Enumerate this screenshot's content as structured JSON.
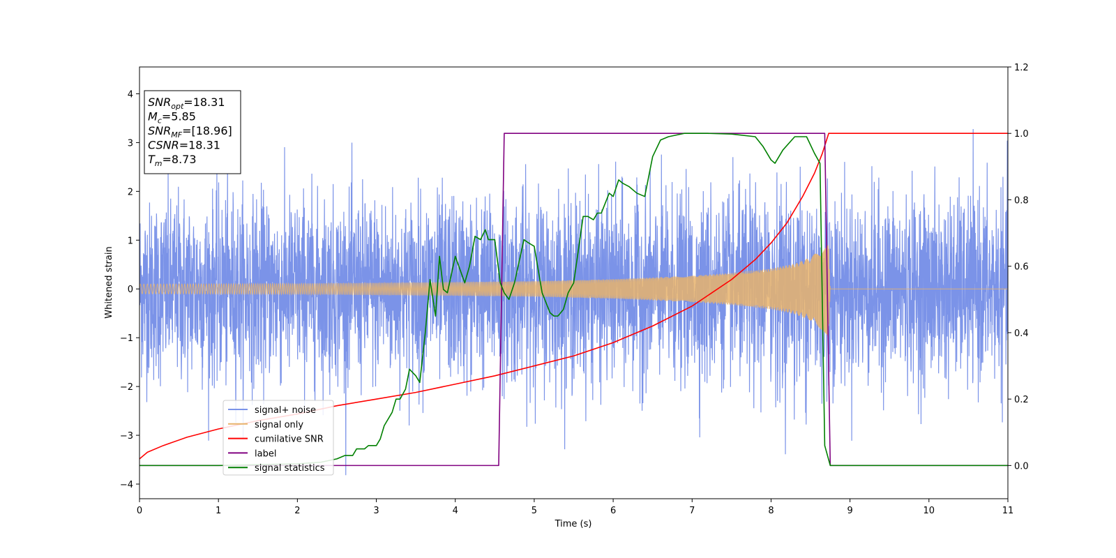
{
  "chart_data": {
    "type": "line",
    "xlabel": "Time (s)",
    "ylabel": "Whitened strain",
    "xlim": [
      0,
      11
    ],
    "ylim": [
      -4.3,
      4.55
    ],
    "ylim_right": [
      -0.1,
      1.2
    ],
    "x_ticks": [
      0,
      1,
      2,
      3,
      4,
      5,
      6,
      7,
      8,
      9,
      10,
      11
    ],
    "y_ticks": [
      -4,
      -3,
      -2,
      -1,
      0,
      1,
      2,
      3,
      4
    ],
    "y_ticks_right": [
      0.0,
      0.2,
      0.4,
      0.6,
      0.8,
      1.0,
      1.2
    ],
    "legend_position": "lower-left",
    "annotation": {
      "lines": [
        {
          "main": "SNR",
          "sub": "opt",
          "value": "=18.31"
        },
        {
          "main": "M",
          "sub": "c",
          "value": "=5.85"
        },
        {
          "main": "SNR",
          "sub": "MF",
          "value": "=[18.96]"
        },
        {
          "main": "CSNR",
          "sub": "",
          "value": "=18.31"
        },
        {
          "main": "T",
          "sub": "m",
          "value": "=8.73"
        }
      ]
    },
    "series": [
      {
        "name": "signal+ noise",
        "axis": "left",
        "color": "#7b93e8",
        "noise_std": 0.92,
        "duration": 11
      },
      {
        "name": "signal only",
        "axis": "left",
        "color": "#e7b36c",
        "amplitude_envelope": {
          "x": [
            0,
            2,
            4,
            5,
            6,
            7,
            7.5,
            8,
            8.3,
            8.5,
            8.65,
            8.73,
            8.75,
            11
          ],
          "y": [
            0.1,
            0.11,
            0.14,
            0.16,
            0.2,
            0.27,
            0.33,
            0.42,
            0.52,
            0.65,
            0.85,
            1.0,
            0.0,
            0.0
          ]
        }
      },
      {
        "name": "cumilative SNR",
        "axis": "right",
        "color": "#ff0000",
        "x": [
          0,
          0.1,
          0.3,
          0.6,
          1,
          1.5,
          2,
          2.5,
          3,
          3.5,
          4,
          4.5,
          5,
          5.5,
          6,
          6.5,
          7,
          7.5,
          7.8,
          8.0,
          8.2,
          8.4,
          8.55,
          8.65,
          8.73,
          8.75,
          11
        ],
        "y": [
          0.02,
          0.04,
          0.06,
          0.085,
          0.11,
          0.135,
          0.155,
          0.18,
          0.2,
          0.22,
          0.245,
          0.27,
          0.3,
          0.33,
          0.37,
          0.42,
          0.48,
          0.56,
          0.62,
          0.67,
          0.73,
          0.81,
          0.88,
          0.94,
          1.0,
          1.0,
          1.0
        ]
      },
      {
        "name": "label",
        "axis": "right",
        "color": "#800080",
        "x": [
          0,
          4.55,
          4.62,
          8.68,
          8.75,
          11
        ],
        "y": [
          0,
          0,
          1,
          1,
          0,
          0
        ]
      },
      {
        "name": "signal statistics",
        "axis": "right",
        "color": "#008000",
        "x": [
          0,
          1.0,
          2.0,
          2.3,
          2.5,
          2.6,
          2.7,
          2.75,
          2.85,
          2.9,
          3.0,
          3.05,
          3.1,
          3.2,
          3.25,
          3.3,
          3.37,
          3.42,
          3.5,
          3.55,
          3.62,
          3.68,
          3.75,
          3.8,
          3.85,
          3.9,
          4.0,
          4.12,
          4.18,
          4.25,
          4.32,
          4.38,
          4.42,
          4.5,
          4.57,
          4.62,
          4.68,
          4.75,
          4.87,
          4.93,
          5.0,
          5.1,
          5.2,
          5.25,
          5.3,
          5.37,
          5.43,
          5.5,
          5.62,
          5.68,
          5.75,
          5.8,
          5.85,
          5.9,
          5.95,
          6.0,
          6.07,
          6.12,
          6.2,
          6.3,
          6.4,
          6.5,
          6.6,
          6.7,
          6.8,
          6.9,
          7.0,
          7.2,
          7.5,
          7.8,
          7.9,
          8.0,
          8.05,
          8.15,
          8.3,
          8.45,
          8.55,
          8.62,
          8.68,
          8.75,
          11
        ],
        "y": [
          0.0,
          0.0,
          0.005,
          0.01,
          0.02,
          0.03,
          0.03,
          0.05,
          0.05,
          0.06,
          0.06,
          0.08,
          0.12,
          0.16,
          0.2,
          0.2,
          0.23,
          0.29,
          0.27,
          0.25,
          0.4,
          0.56,
          0.45,
          0.63,
          0.53,
          0.52,
          0.63,
          0.55,
          0.6,
          0.69,
          0.68,
          0.71,
          0.68,
          0.68,
          0.55,
          0.52,
          0.5,
          0.55,
          0.68,
          0.67,
          0.66,
          0.52,
          0.46,
          0.45,
          0.45,
          0.47,
          0.52,
          0.55,
          0.75,
          0.75,
          0.74,
          0.76,
          0.76,
          0.79,
          0.82,
          0.81,
          0.86,
          0.85,
          0.84,
          0.82,
          0.81,
          0.93,
          0.98,
          0.99,
          0.995,
          1.0,
          1.0,
          1.0,
          0.998,
          0.99,
          0.96,
          0.92,
          0.91,
          0.95,
          0.99,
          0.99,
          0.94,
          0.91,
          0.06,
          0.0,
          0.0
        ]
      }
    ]
  }
}
